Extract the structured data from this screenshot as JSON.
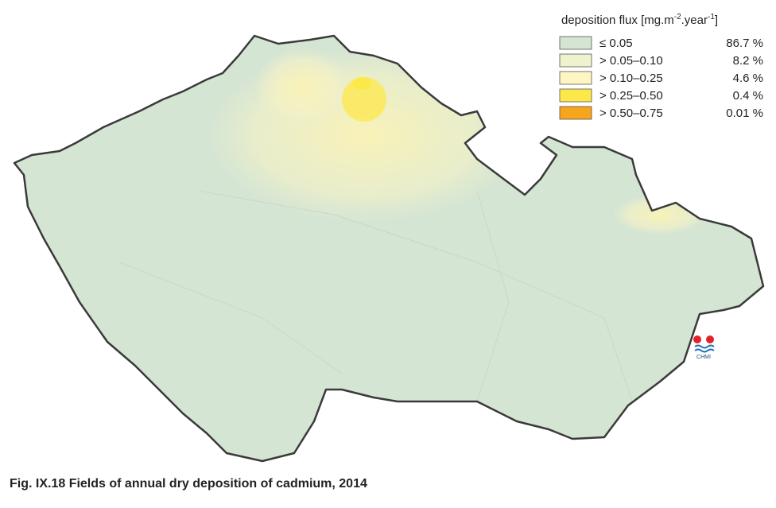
{
  "legend": {
    "title_parts": [
      "deposition flux [mg.m",
      "-2",
      ".year",
      "-1",
      "]"
    ],
    "items": [
      {
        "label": "≤ 0.05",
        "share": "86.7 %",
        "color": "#d5e5d3"
      },
      {
        "label": "> 0.05–0.10",
        "share": "8.2 %",
        "color": "#eef3cd"
      },
      {
        "label": "> 0.10–0.25",
        "share": "4.6 %",
        "color": "#fdf6c2"
      },
      {
        "label": "> 0.25–0.50",
        "share": "0.4 %",
        "color": "#fde84a"
      },
      {
        "label": "> 0.50–0.75",
        "share": "0.01 %",
        "color": "#f6a51c"
      }
    ]
  },
  "logo": {
    "text": "CHMI"
  },
  "caption": "Fig. IX.18  Fields of annual dry deposition of cadmium, 2014"
}
